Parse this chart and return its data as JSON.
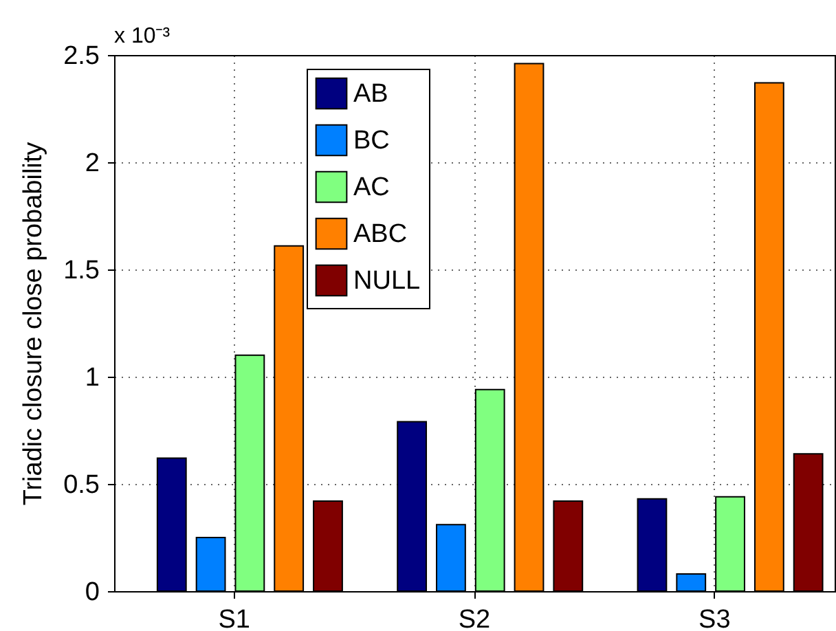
{
  "chart_data": {
    "type": "bar",
    "ylabel": "Triadic closure close probability",
    "categories": [
      "S1",
      "S2",
      "S3"
    ],
    "series": [
      {
        "name": "AB",
        "color": "#000080",
        "values": [
          0.62,
          0.79,
          0.43
        ]
      },
      {
        "name": "BC",
        "color": "#0080ff",
        "values": [
          0.25,
          0.31,
          0.08
        ]
      },
      {
        "name": "AC",
        "color": "#80ff80",
        "values": [
          1.1,
          0.94,
          0.44
        ]
      },
      {
        "name": "ABC",
        "color": "#ff8000",
        "values": [
          1.61,
          2.46,
          2.37
        ]
      },
      {
        "name": "NULL",
        "color": "#800000",
        "values": [
          0.42,
          0.42,
          0.64
        ]
      }
    ],
    "ylim": [
      0,
      2.5
    ],
    "yticks": [
      0,
      0.5,
      1,
      1.5,
      2,
      2.5
    ],
    "annotations": [
      "x 10⁻³"
    ],
    "grid": true,
    "legend": "top"
  }
}
